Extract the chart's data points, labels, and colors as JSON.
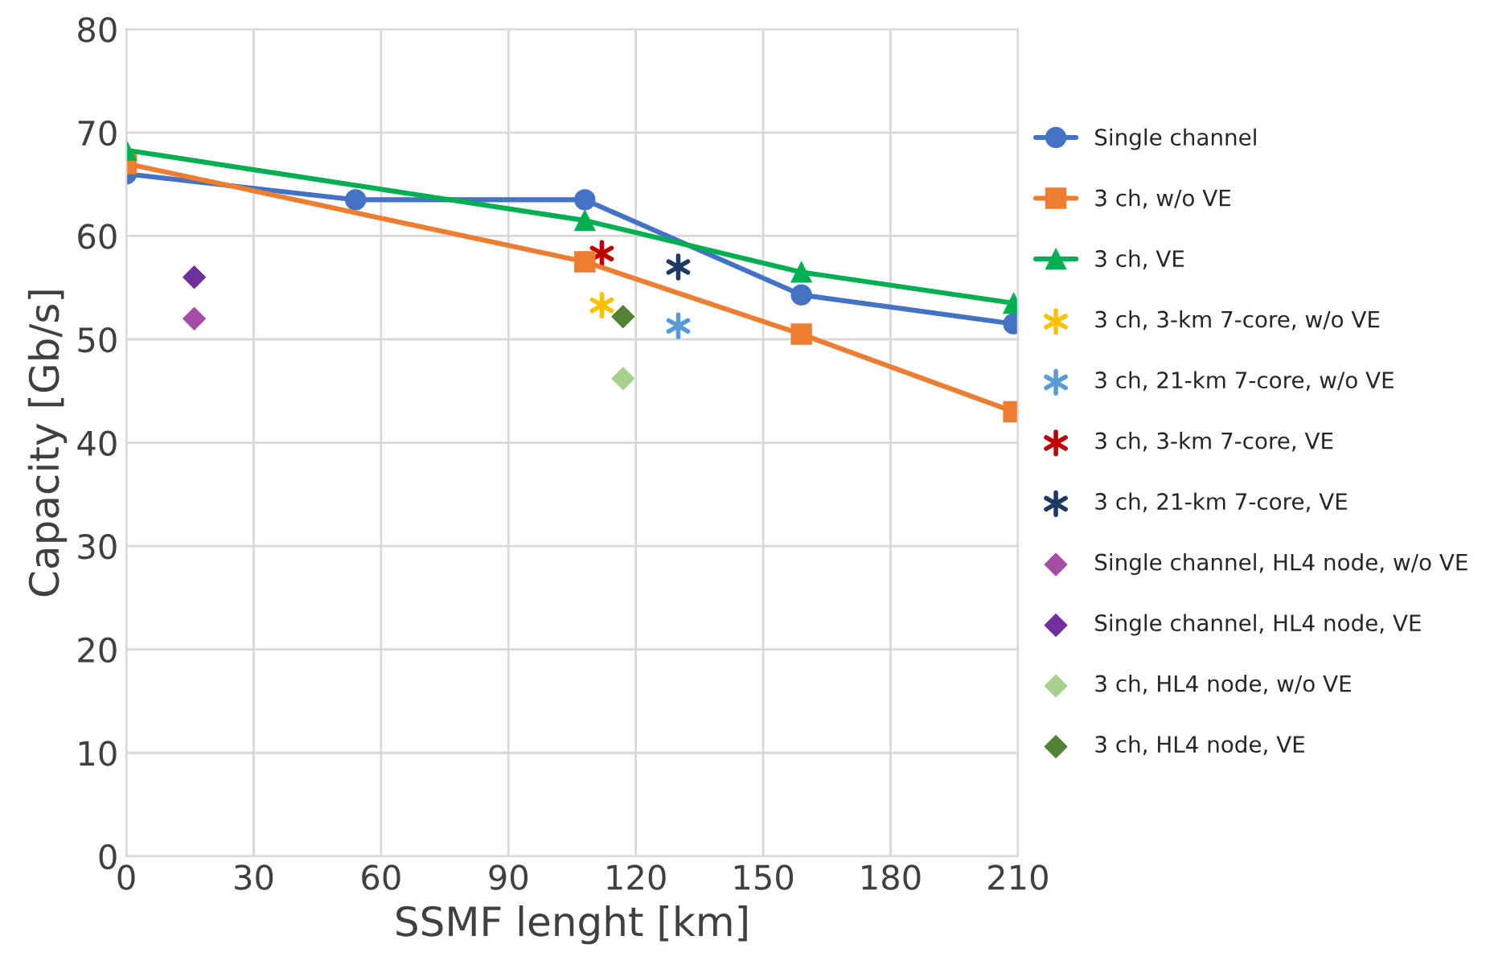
{
  "chart_data": {
    "type": "line",
    "xlabel": "SSMF lenght [km]",
    "ylabel": "Capacity [Gb/s]",
    "xlim": [
      0,
      210
    ],
    "xticks": [
      0,
      30,
      60,
      90,
      120,
      150,
      180,
      210
    ],
    "ylim": [
      0,
      80
    ],
    "yticks": [
      0,
      10,
      20,
      30,
      40,
      50,
      60,
      70,
      80
    ],
    "grid": true,
    "legend": "right",
    "series": [
      {
        "name": "Single channel",
        "marker": "circle",
        "color": "#4472c4",
        "x": [
          0,
          54,
          108,
          159,
          209
        ],
        "values": [
          66,
          63.5,
          63.5,
          54.3,
          51.5
        ]
      },
      {
        "name": "3 ch, w/o VE",
        "marker": "square",
        "color": "#ed7d31",
        "x": [
          0,
          108,
          159,
          209
        ],
        "values": [
          67,
          57.5,
          50.5,
          43
        ]
      },
      {
        "name": "3 ch, VE",
        "marker": "triangle",
        "color": "#00b050",
        "x": [
          0,
          108,
          159,
          209
        ],
        "values": [
          68.3,
          61.5,
          56.5,
          53.5
        ]
      },
      {
        "name": "3 ch, 3-km 7-core, w/o VE",
        "type": "scatter",
        "marker": "cross",
        "color": "#ffc000",
        "x": [
          112
        ],
        "values": [
          53.3
        ]
      },
      {
        "name": "3 ch, 21-km 7-core, w/o VE",
        "type": "scatter",
        "marker": "cross",
        "color": "#5b9bd5",
        "x": [
          130
        ],
        "values": [
          51.3
        ]
      },
      {
        "name": "3 ch, 3-km 7-core, VE",
        "type": "scatter",
        "marker": "cross",
        "color": "#c00000",
        "x": [
          112
        ],
        "values": [
          58.3
        ]
      },
      {
        "name": "3 ch, 21-km 7-core, VE",
        "type": "scatter",
        "marker": "cross",
        "color": "#203864",
        "x": [
          130
        ],
        "values": [
          57
        ]
      },
      {
        "name": "Single channel, HL4 node, w/o VE",
        "type": "scatter",
        "marker": "diamond",
        "color": "#a64ca6",
        "x": [
          16
        ],
        "values": [
          52
        ]
      },
      {
        "name": "Single channel, HL4 node, VE",
        "type": "scatter",
        "marker": "diamond",
        "color": "#7030a0",
        "x": [
          16
        ],
        "values": [
          56
        ]
      },
      {
        "name": "3 ch, HL4 node, w/o VE",
        "type": "scatter",
        "marker": "diamond",
        "color": "#a9d18e",
        "x": [
          117
        ],
        "values": [
          46.2
        ]
      },
      {
        "name": "3 ch, HL4 node, VE",
        "type": "scatter",
        "marker": "diamond",
        "color": "#548235",
        "x": [
          117
        ],
        "values": [
          52.2
        ]
      }
    ]
  }
}
